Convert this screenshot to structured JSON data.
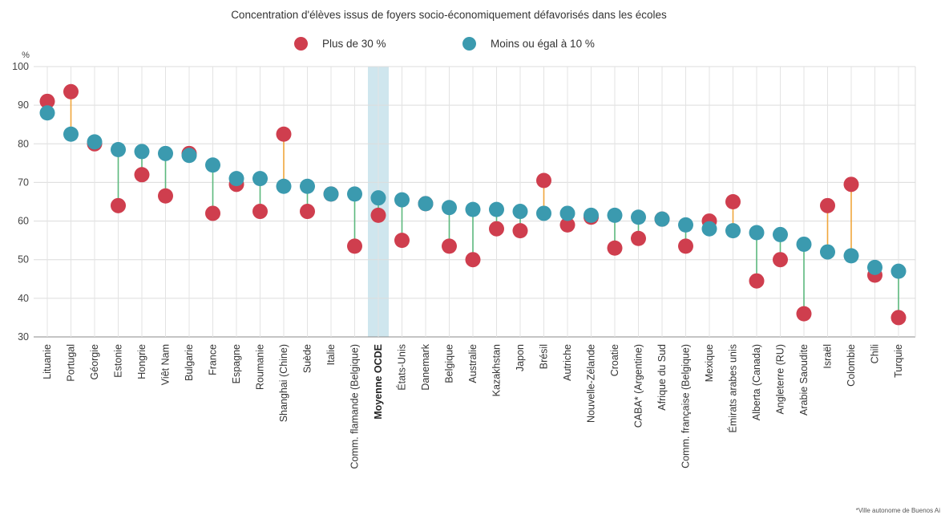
{
  "chart_data": {
    "type": "scatter",
    "title": "Concentration d'élèves issus de foyers socio-économiquement défavorisés dans les écoles",
    "ylabel": "%",
    "ylim": [
      30,
      100
    ],
    "yticks": [
      30,
      40,
      50,
      60,
      70,
      80,
      90,
      100
    ],
    "grid": true,
    "highlight_category": "Moyenne OCDE",
    "categories": [
      "Lituanie",
      "Portugal",
      "Géorgie",
      "Estonie",
      "Hongrie",
      "Viêt Nam",
      "Bulgarie",
      "France",
      "Espagne",
      "Roumanie",
      "Shanghai (Chine)",
      "Suède",
      "Italie",
      "Comm. flamande (Belgique)",
      "Moyenne OCDE",
      "États-Unis",
      "Danemark",
      "Belgique",
      "Australie",
      "Kazakhstan",
      "Japon",
      "Brésil",
      "Autriche",
      "Nouvelle-Zélande",
      "Croatie",
      "CABA* (Argentine)",
      "Afrique du Sud",
      "Comm. française (Belgique)",
      "Mexique",
      "Émirats arabes unis",
      "Alberta (Canada)",
      "Angleterre (RU)",
      "Arabie Saoudite",
      "Israël",
      "Colombie",
      "Chili",
      "Turquie"
    ],
    "series": [
      {
        "name": "Plus de 30 %",
        "color": "#cf3e4e",
        "values": [
          91,
          93.5,
          80,
          64,
          72,
          66.5,
          77.5,
          62,
          69.5,
          62.5,
          82.5,
          62.5,
          67,
          53.5,
          61.5,
          55,
          64.5,
          53.5,
          50,
          58,
          57.5,
          70.5,
          59,
          61,
          53,
          55.5,
          60.5,
          53.5,
          60,
          65,
          44.5,
          50,
          36,
          64,
          69.5,
          46,
          35
        ]
      },
      {
        "name": "Moins ou égal à 10 %",
        "color": "#3b9aaf",
        "values": [
          88,
          82.5,
          80.5,
          78.5,
          78,
          77.5,
          77,
          74.5,
          71,
          71,
          69,
          69,
          67,
          67,
          66,
          65.5,
          64.5,
          63.5,
          63,
          63,
          62.5,
          62,
          62,
          61.5,
          61.5,
          61,
          60.5,
          59,
          58,
          57.5,
          57,
          56.5,
          54,
          52,
          51,
          48,
          47
        ]
      }
    ],
    "connector_colors": {
      "red_higher": "#f0a63c",
      "teal_higher": "#5cb87d"
    },
    "footnote": "*Ville autonome de Buenos Ai"
  }
}
